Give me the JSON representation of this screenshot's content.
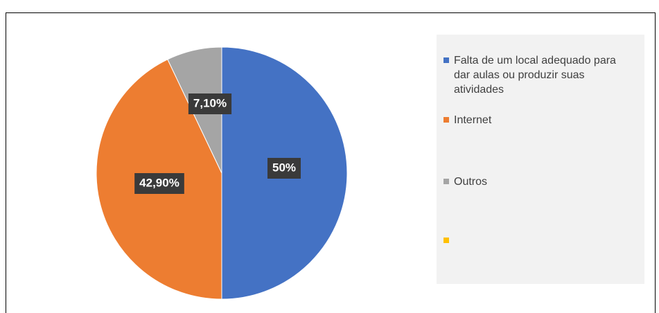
{
  "chart_data": {
    "type": "pie",
    "categories": [
      "Falta de um local adequado para dar aulas ou produzir suas atividades",
      "Internet",
      "Outros",
      null
    ],
    "values": [
      50,
      42.9,
      7.1,
      null
    ],
    "value_labels": [
      "50%",
      "42,90%",
      "7,10%",
      null
    ],
    "colors": [
      "#4472c4",
      "#ed7d31",
      "#a5a5a5",
      "#ffc000"
    ],
    "legend": "right"
  }
}
